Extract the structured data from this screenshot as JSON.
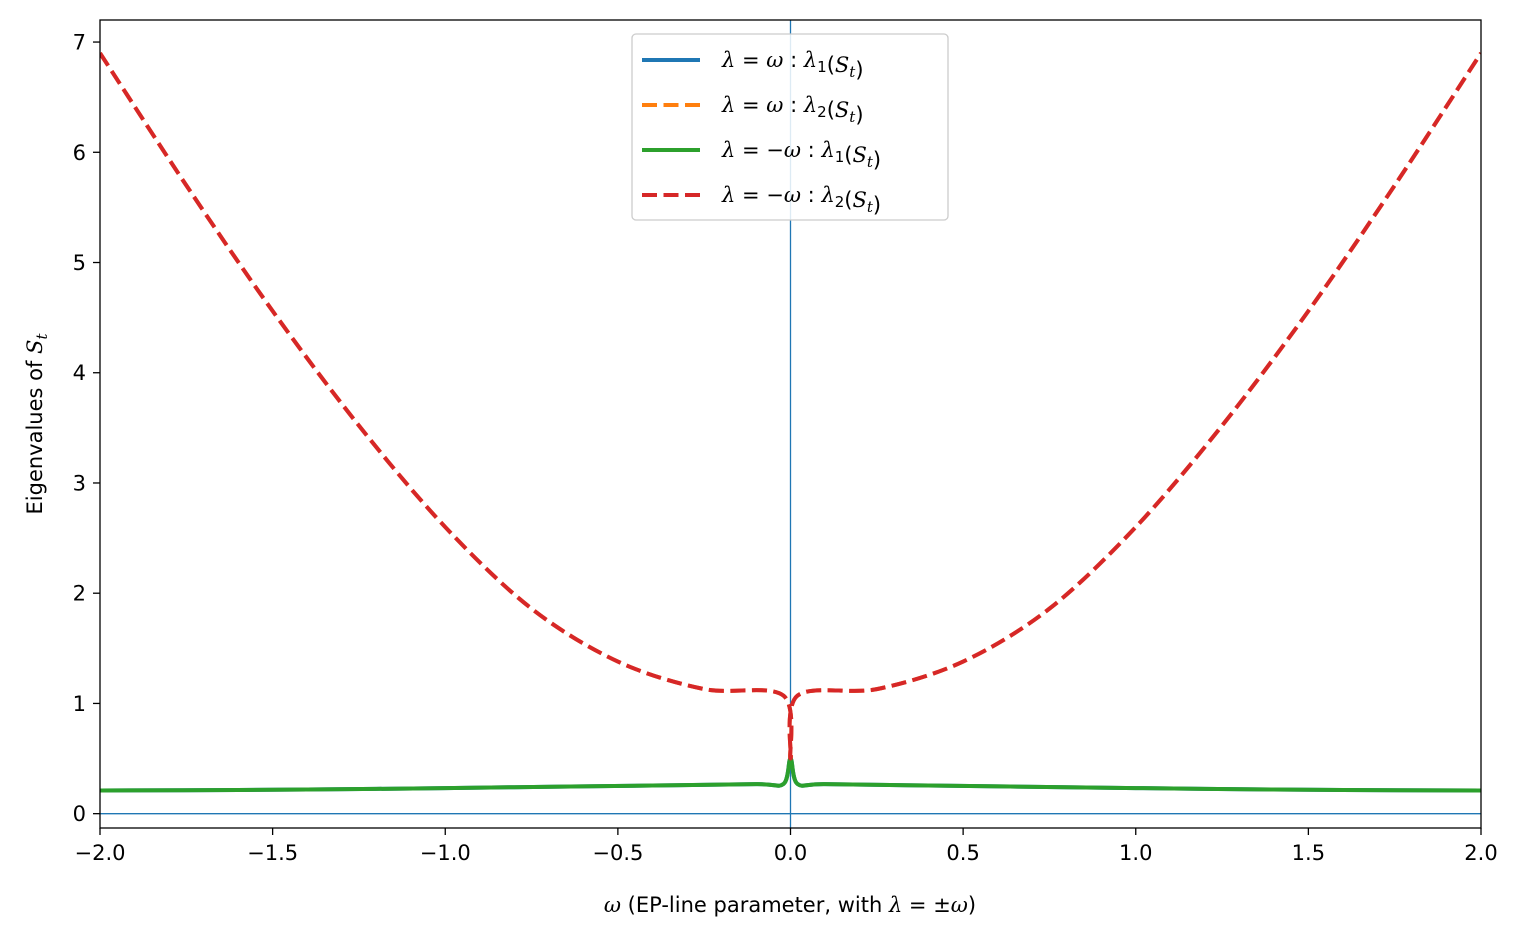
{
  "chart_data": {
    "type": "line",
    "title": "",
    "xlabel": {
      "omega": "ω",
      "text": " (EP-line parameter, with ",
      "lambda": "λ",
      "rel": " = ±",
      "omega2": "ω",
      "close": ")"
    },
    "ylabel": {
      "text": "Eigenvalues of ",
      "S": "S",
      "sub": "t"
    },
    "xlim": [
      -2.0,
      2.0
    ],
    "ylim": [
      -0.13,
      7.2
    ],
    "xticks": [
      "−2.0",
      "−1.5",
      "−1.0",
      "−0.5",
      "0.0",
      "0.5",
      "1.0",
      "1.5",
      "2.0"
    ],
    "xtick_values": [
      -2.0,
      -1.5,
      -1.0,
      -0.5,
      0.0,
      0.5,
      1.0,
      1.5,
      2.0
    ],
    "yticks": [
      "0",
      "1",
      "2",
      "3",
      "4",
      "5",
      "6",
      "7"
    ],
    "ytick_values": [
      0,
      1,
      2,
      3,
      4,
      5,
      6,
      7
    ],
    "grid": false,
    "legend_position": "top-center",
    "reference_lines": {
      "vertical_x": 0.0,
      "horizontal_y": 0.0,
      "color": "#1f77b4"
    },
    "series": [
      {
        "name": "λ = ω :  λ1(St)",
        "color": "#1f77b4",
        "dash": "solid",
        "x": [
          -2.0,
          -1.6,
          -1.2,
          -0.8,
          -0.4,
          -0.1,
          -0.02,
          0.0,
          0.02,
          0.1,
          0.4,
          0.8,
          1.2,
          1.6,
          2.0
        ],
        "y": [
          0.21,
          0.215,
          0.225,
          0.24,
          0.255,
          0.268,
          0.27,
          0.5,
          0.27,
          0.268,
          0.255,
          0.24,
          0.225,
          0.215,
          0.21
        ]
      },
      {
        "name": "λ = ω :  λ2(St)",
        "color": "#ff7f0e",
        "dash": "dashed",
        "x": [
          -2.0,
          -1.75,
          -1.5,
          -1.25,
          -1.0,
          -0.75,
          -0.5,
          -0.25,
          -0.02,
          0.0,
          0.02,
          0.25,
          0.5,
          0.75,
          1.0,
          1.25,
          1.5,
          1.75,
          2.0
        ],
        "y": [
          6.9,
          5.7,
          4.56,
          3.52,
          2.6,
          1.86,
          1.38,
          1.13,
          1.07,
          0.5,
          1.07,
          1.13,
          1.38,
          1.86,
          2.6,
          3.52,
          4.56,
          5.7,
          6.9
        ]
      },
      {
        "name": "λ = −ω :  λ1(St)",
        "color": "#2ca02c",
        "dash": "solid",
        "x": [
          -2.0,
          -1.6,
          -1.2,
          -0.8,
          -0.4,
          -0.1,
          -0.02,
          0.0,
          0.02,
          0.1,
          0.4,
          0.8,
          1.2,
          1.6,
          2.0
        ],
        "y": [
          0.21,
          0.215,
          0.225,
          0.24,
          0.255,
          0.268,
          0.27,
          0.5,
          0.27,
          0.268,
          0.255,
          0.24,
          0.225,
          0.215,
          0.21
        ]
      },
      {
        "name": "λ = −ω :  λ2(St)",
        "color": "#d62728",
        "dash": "dashed",
        "x": [
          -2.0,
          -1.75,
          -1.5,
          -1.25,
          -1.0,
          -0.75,
          -0.5,
          -0.25,
          -0.02,
          0.0,
          0.02,
          0.25,
          0.5,
          0.75,
          1.0,
          1.25,
          1.5,
          1.75,
          2.0
        ],
        "y": [
          6.9,
          5.7,
          4.56,
          3.52,
          2.6,
          1.86,
          1.38,
          1.13,
          1.07,
          0.5,
          1.07,
          1.13,
          1.38,
          1.86,
          2.6,
          3.52,
          4.56,
          5.7,
          6.9
        ]
      }
    ],
    "legend": [
      {
        "lhs": "λ",
        "op": " = ",
        "sign": "",
        "var": "ω",
        "colon": " : ",
        "ev": "λ",
        "idx": "1",
        "paren_open": "(",
        "S": "S",
        "sub": "t",
        "paren_close": ")"
      },
      {
        "lhs": "λ",
        "op": " = ",
        "sign": "",
        "var": "ω",
        "colon": " : ",
        "ev": "λ",
        "idx": "2",
        "paren_open": "(",
        "S": "S",
        "sub": "t",
        "paren_close": ")"
      },
      {
        "lhs": "λ",
        "op": " = ",
        "sign": "−",
        "var": "ω",
        "colon": " : ",
        "ev": "λ",
        "idx": "1",
        "paren_open": "(",
        "S": "S",
        "sub": "t",
        "paren_close": ")"
      },
      {
        "lhs": "λ",
        "op": " = ",
        "sign": "−",
        "var": "ω",
        "colon": " : ",
        "ev": "λ",
        "idx": "2",
        "paren_open": "(",
        "S": "S",
        "sub": "t",
        "paren_close": ")"
      }
    ]
  }
}
